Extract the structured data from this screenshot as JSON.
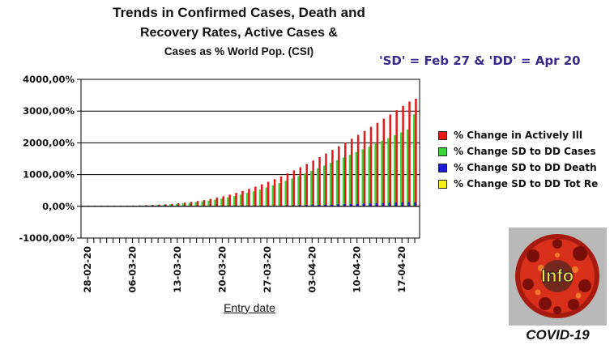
{
  "chart_data": {
    "type": "bar",
    "title": "Trends in Confirmed Cases, Death and Recovery Rates, Active Cases & Cases as % World Pop. (CSI)",
    "title_lines": [
      "Trends in Confirmed Cases, Death and",
      "Recovery Rates, Active Cases &",
      "Cases as % World Pop. (CSI)"
    ],
    "xlabel": "Entry date",
    "ylabel": "",
    "ylim": [
      -1000,
      4000
    ],
    "yticks": [
      4000,
      3000,
      2000,
      1000,
      0,
      -1000
    ],
    "ytick_labels": [
      "4000,00%",
      "3000,00%",
      "2000,00%",
      "1000,00%",
      "0,00%",
      "-1000,00%"
    ],
    "grid": true,
    "legend_position": "right",
    "date_start": "28-02-20",
    "xtick_labels": [
      "28-02-20",
      "06-03-20",
      "13-03-20",
      "20-03-20",
      "27-03-20",
      "03-04-20",
      "10-04-20",
      "17-04-20"
    ],
    "xtick_every": 7,
    "series": [
      {
        "name": "% Change in Actively Ill",
        "legend_label": "% Change in Actively Ill",
        "color": "#e31b1b",
        "values": [
          0,
          2,
          4,
          7,
          10,
          14,
          18,
          23,
          29,
          36,
          44,
          54,
          66,
          80,
          97,
          117,
          140,
          167,
          198,
          233,
          273,
          318,
          368,
          423,
          483,
          548,
          618,
          693,
          773,
          857,
          945,
          1037,
          1133,
          1233,
          1336,
          1442,
          1551,
          1662,
          1776,
          1892,
          2010,
          2130,
          2252,
          2376,
          2502,
          2630,
          2760,
          2892,
          3026,
          3162,
          3300,
          3390
        ]
      },
      {
        "name": "% Change SD to DD Cases",
        "legend_label": "% Change SD to DD Cases",
        "color": "#38d638",
        "values": [
          0,
          1,
          3,
          5,
          8,
          11,
          14,
          18,
          23,
          28,
          35,
          43,
          52,
          63,
          76,
          92,
          110,
          130,
          153,
          180,
          210,
          244,
          282,
          324,
          370,
          420,
          474,
          532,
          594,
          660,
          730,
          803,
          879,
          957,
          1037,
          1118,
          1200,
          1284,
          1368,
          1453,
          1538,
          1624,
          1710,
          1797,
          1884,
          1972,
          2060,
          2149,
          2239,
          2330,
          2422,
          2900
        ]
      },
      {
        "name": "% Change SD to DD Death",
        "legend_label": "% Change SD to DD Death",
        "color": "#1c1cd6",
        "values": [
          0,
          0,
          0,
          0,
          0,
          0,
          0,
          0,
          0,
          0,
          0,
          0,
          0,
          0,
          0,
          0,
          1,
          1,
          1,
          2,
          2,
          3,
          4,
          5,
          6,
          8,
          10,
          12,
          14,
          17,
          20,
          23,
          27,
          31,
          35,
          40,
          45,
          50,
          55,
          60,
          66,
          72,
          78,
          84,
          90,
          96,
          102,
          108,
          114,
          120,
          126,
          130
        ]
      },
      {
        "name": "% Change SD to DD Tot Re",
        "legend_label": "% Change SD to DD Tot Re",
        "color": "#f4f01e",
        "values": [
          0,
          0,
          0,
          0,
          0,
          0,
          0,
          0,
          0,
          0,
          0,
          0,
          0,
          0,
          0,
          0,
          0,
          0,
          0,
          0,
          0,
          0,
          0,
          0,
          0,
          0,
          0,
          1,
          1,
          1,
          2,
          2,
          3,
          3,
          4,
          4,
          5,
          6,
          7,
          8,
          9,
          10,
          11,
          12,
          13,
          14,
          15,
          16,
          17,
          18,
          19,
          20
        ]
      }
    ]
  },
  "note": "'SD' = Feb 27 & 'DD' = Apr 20",
  "logo": {
    "text": "Info",
    "caption": "COVID-19"
  }
}
